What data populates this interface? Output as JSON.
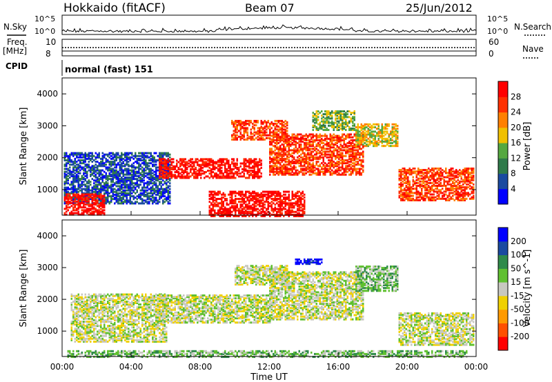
{
  "header": {
    "title": "Hokkaido (fitACF)",
    "beam": "Beam 07",
    "date": "25/Jun/2012"
  },
  "strips": {
    "nsky_label": "N.Sky",
    "nsky_ticks": [
      "10^5",
      "10^0"
    ],
    "nsearch_label": "N.Search",
    "nsearch_ticks": [
      "10^5",
      "10^0"
    ],
    "freq_label": "Freq.",
    "freq_unit": "[MHz]",
    "freq_ticks": [
      "10",
      "8"
    ],
    "nave_label": "Nave",
    "nave_ticks": [
      "60",
      "0"
    ],
    "cpid_label": "CPID",
    "cpid_value": "normal (fast) 151"
  },
  "chart_data": [
    {
      "type": "heatmap",
      "name": "power",
      "ylabel": "Slant Range [km]",
      "xlabel": "",
      "x_ticks": [
        "00:00",
        "04:00",
        "08:00",
        "12:00",
        "16:00",
        "20:00",
        "00:00"
      ],
      "y_ticks": [
        1000,
        2000,
        3000,
        4000
      ],
      "ylim": [
        200,
        4500
      ],
      "xlim_hours": [
        0,
        24
      ],
      "colorbar_label": "Power [dB]",
      "colorbar_ticks": [
        "28",
        "24",
        "20",
        "16",
        "12",
        "8",
        "4"
      ],
      "colorbar_values": [
        28,
        24,
        20,
        16,
        12,
        8,
        4
      ],
      "colors": [
        "#0000ff",
        "#1a4aa0",
        "#2f7a4a",
        "#55a840",
        "#f0c000",
        "#ff8000",
        "#ff3000",
        "#ff0000"
      ],
      "regions": [
        {
          "t0": 0.1,
          "t1": 6.2,
          "r0": 600,
          "r1": 2200,
          "level": 1
        },
        {
          "t0": 0.1,
          "t1": 2.5,
          "r0": 250,
          "r1": 900,
          "level": 7
        },
        {
          "t0": 5.6,
          "t1": 11.5,
          "r0": 1400,
          "r1": 2000,
          "level": 7
        },
        {
          "t0": 9.8,
          "t1": 13.0,
          "r0": 2600,
          "r1": 3200,
          "level": 6
        },
        {
          "t0": 12.0,
          "t1": 17.5,
          "r0": 1500,
          "r1": 2800,
          "level": 6
        },
        {
          "t0": 17.0,
          "t1": 19.5,
          "r0": 2400,
          "r1": 3100,
          "level": 4
        },
        {
          "t0": 19.5,
          "t1": 23.9,
          "r0": 700,
          "r1": 1700,
          "level": 6
        },
        {
          "t0": 8.5,
          "t1": 14.0,
          "r0": 200,
          "r1": 1000,
          "level": 7
        },
        {
          "t0": 14.5,
          "t1": 17.0,
          "r0": 2900,
          "r1": 3500,
          "level": 3
        }
      ]
    },
    {
      "type": "heatmap",
      "name": "velocity",
      "ylabel": "Slant Range [km]",
      "xlabel": "Time UT",
      "x_ticks": [
        "00:00",
        "04:00",
        "08:00",
        "12:00",
        "16:00",
        "20:00",
        "00:00"
      ],
      "y_ticks": [
        1000,
        2000,
        3000,
        4000
      ],
      "ylim": [
        200,
        4500
      ],
      "xlim_hours": [
        0,
        24
      ],
      "colorbar_label": "Velocity [m s^-1]",
      "colorbar_ticks": [
        "200",
        "100",
        "50",
        "15",
        "-15",
        "-50",
        "-100",
        "-200"
      ],
      "colorbar_values": [
        200,
        100,
        50,
        15,
        -15,
        -50,
        -100,
        -200
      ],
      "colors": [
        "#ff0000",
        "#ff5000",
        "#ff9a00",
        "#f0d000",
        "#c8c8c0",
        "#60c030",
        "#2f8a4a",
        "#1a4aa0",
        "#0000ff"
      ],
      "regions": [
        {
          "t0": 0.5,
          "t1": 6.0,
          "r0": 700,
          "r1": 2200,
          "level": 4
        },
        {
          "t0": 5.5,
          "t1": 12.0,
          "r0": 1300,
          "r1": 2200,
          "level": 4
        },
        {
          "t0": 10.0,
          "t1": 13.0,
          "r0": 2500,
          "r1": 3100,
          "level": 4
        },
        {
          "t0": 12.0,
          "t1": 17.5,
          "r0": 1400,
          "r1": 2900,
          "level": 4
        },
        {
          "t0": 17.0,
          "t1": 19.5,
          "r0": 2300,
          "r1": 3100,
          "level": 5
        },
        {
          "t0": 19.5,
          "t1": 23.9,
          "r0": 600,
          "r1": 1600,
          "level": 4
        },
        {
          "t0": 13.5,
          "t1": 15.0,
          "r0": 3150,
          "r1": 3300,
          "level": 8
        },
        {
          "t0": 0.3,
          "t1": 23.5,
          "r0": 220,
          "r1": 420,
          "level": 5
        }
      ]
    }
  ]
}
